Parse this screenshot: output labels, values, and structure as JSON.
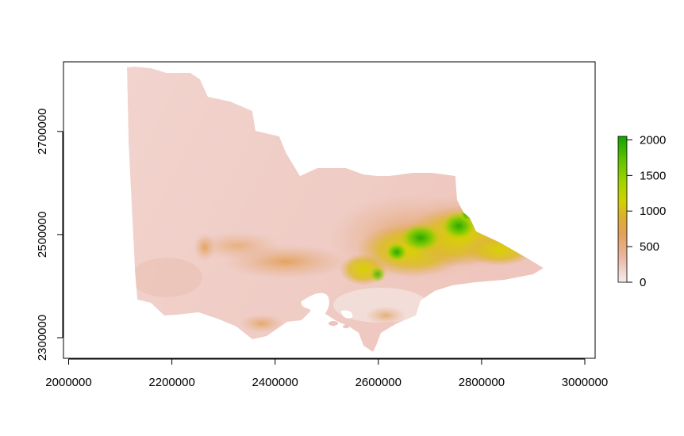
{
  "chart_data": {
    "type": "raster-map",
    "title": "",
    "region": "Victoria elevation raster",
    "xlim": [
      1990000,
      3020000
    ],
    "ylim": [
      2260000,
      2835000
    ],
    "x_ticks": [
      2000000,
      2200000,
      2400000,
      2600000,
      2800000,
      3000000
    ],
    "y_ticks": [
      2300000,
      2500000,
      2700000
    ],
    "legend": {
      "position": "right",
      "min": 0,
      "max": 2050,
      "ticks": [
        0,
        500,
        1000,
        1500,
        2000
      ],
      "ramp": [
        "#f5eeee",
        "#e9b7a3",
        "#e1a15b",
        "#d9b030",
        "#d3d000",
        "#a4d400",
        "#5fc300",
        "#12a200"
      ]
    }
  }
}
